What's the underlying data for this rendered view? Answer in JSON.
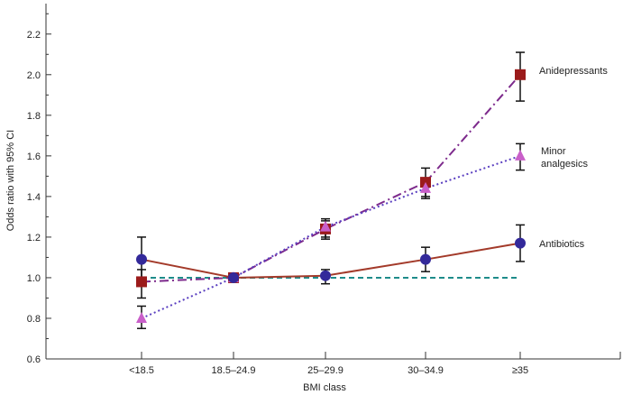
{
  "chart_data": {
    "type": "line",
    "title": "",
    "xlabel": "BMI class",
    "ylabel": "Odds ratio with 95% CI",
    "categories": [
      "<18.5",
      "18.5–24.9",
      "25–29.9",
      "30–34.9",
      "≥35"
    ],
    "ylim": [
      0.6,
      2.35
    ],
    "yticks": [
      0.6,
      0.8,
      1.0,
      1.2,
      1.4,
      1.6,
      1.8,
      2.0,
      2.2
    ],
    "ytick_labels": [
      "0.6",
      "0.8",
      "1.0",
      "1.2",
      "1.4",
      "1.6",
      "1.8",
      "2.0",
      "2.2"
    ],
    "reference_line": 1.0,
    "grid": false,
    "series": [
      {
        "name": "Anidepressants",
        "marker": "square",
        "color": "#9b1b1b",
        "line_color": "#7d2a8c",
        "line_style": "dashdot",
        "values": [
          0.98,
          1.0,
          1.24,
          1.47,
          2.0
        ],
        "ci_low": [
          0.9,
          1.0,
          1.19,
          1.4,
          1.87
        ],
        "ci_high": [
          1.04,
          1.0,
          1.29,
          1.54,
          2.11
        ]
      },
      {
        "name": "Minor\nanalgesics",
        "marker": "triangle",
        "color": "#c95fc9",
        "line_color": "#5a3fc0",
        "line_style": "dotted",
        "values": [
          0.8,
          1.0,
          1.25,
          1.44,
          1.6
        ],
        "ci_low": [
          0.75,
          1.0,
          1.2,
          1.39,
          1.53
        ],
        "ci_high": [
          0.86,
          1.0,
          1.28,
          1.48,
          1.66
        ]
      },
      {
        "name": "Antibiotics",
        "marker": "circle",
        "color": "#33299a",
        "line_color": "#a33a2a",
        "line_style": "solid",
        "values": [
          1.09,
          1.0,
          1.01,
          1.09,
          1.17
        ],
        "ci_low": [
          0.99,
          1.0,
          0.97,
          1.03,
          1.08
        ],
        "ci_high": [
          1.2,
          1.0,
          1.04,
          1.15,
          1.26
        ]
      }
    ]
  }
}
